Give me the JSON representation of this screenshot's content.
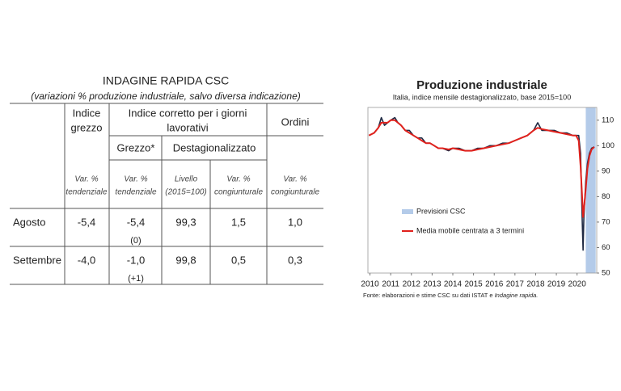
{
  "table": {
    "title": "INDAGINE RAPIDA CSC",
    "subtitle": "(variazioni % produzione industriale, salvo diversa indicazione)",
    "header_grezzo": [
      "Indice",
      "grezzo"
    ],
    "header_corretto": [
      "Indice corretto per i giorni",
      "lavorativi"
    ],
    "header_ordini": "Ordini",
    "sub_grezzo": "Grezzo*",
    "sub_destag": "Destagionalizzato",
    "units": [
      [
        "Var. %",
        "tendenziale"
      ],
      [
        "Var. %",
        "tendenziale"
      ],
      [
        "Livello",
        "(2015=100)"
      ],
      [
        "Var. %",
        "congiunturale"
      ],
      [
        "Var. %",
        "congiunturale"
      ]
    ],
    "rows": [
      {
        "label": "Agosto",
        "cells": [
          "-5,4",
          "-5,4",
          "99,3",
          "1,5",
          "1,0"
        ],
        "note": "(0)"
      },
      {
        "label": "Settembre",
        "cells": [
          "-4,0",
          "-1,0",
          "99,8",
          "0,5",
          "0,3"
        ],
        "note": "(+1)"
      }
    ]
  },
  "chart_data": {
    "type": "line",
    "title": "Produzione industriale",
    "subtitle": "Italia, indice mensile destagionalizzato, base 2015=100",
    "source": "Fonte: elaborazioni e stime CSC su dati ISTAT e",
    "source_italic": "Indagine rapida.",
    "xlim": [
      2009.9,
      2020.95
    ],
    "xticks": [
      2010,
      2011,
      2012,
      2013,
      2014,
      2015,
      2016,
      2017,
      2018,
      2019,
      2020
    ],
    "ylim": [
      50,
      115
    ],
    "yticks": [
      50,
      60,
      70,
      80,
      90,
      100,
      110
    ],
    "forecast": {
      "name": "Previsioni CSC",
      "color": "#b4cbe9",
      "x": [
        2020.42,
        2020.9
      ]
    },
    "series": [
      {
        "color": "#1f2a44",
        "x": [
          2009.95,
          2010.2,
          2010.4,
          2010.55,
          2010.7,
          2010.85,
          2011.0,
          2011.2,
          2011.35,
          2011.5,
          2011.7,
          2011.9,
          2012.1,
          2012.3,
          2012.5,
          2012.7,
          2012.9,
          2013.1,
          2013.3,
          2013.5,
          2013.8,
          2014.0,
          2014.3,
          2014.6,
          2014.9,
          2015.2,
          2015.5,
          2015.8,
          2016.1,
          2016.4,
          2016.7,
          2017.0,
          2017.3,
          2017.6,
          2017.9,
          2018.1,
          2018.3,
          2018.6,
          2018.9,
          2019.2,
          2019.5,
          2019.8,
          2019.95,
          2020.08,
          2020.17,
          2020.25,
          2020.29,
          2020.33,
          2020.42,
          2020.5,
          2020.6,
          2020.7,
          2020.83
        ],
        "values": [
          104,
          105,
          107,
          111,
          108,
          109,
          110,
          111,
          109,
          108,
          106,
          106,
          104,
          103,
          103,
          101,
          101,
          100,
          99,
          99,
          98,
          99,
          99,
          98,
          98,
          99,
          99,
          100,
          100,
          101,
          101,
          102,
          103,
          104,
          106,
          109,
          106,
          106,
          106,
          105,
          105,
          104,
          104,
          104,
          97,
          70,
          59,
          72,
          86,
          93,
          97,
          99,
          99.5
        ]
      },
      {
        "name": "Media mobile centrata a 3 termini",
        "color": "#e0211c",
        "x": [
          2009.95,
          2010.2,
          2010.4,
          2010.55,
          2010.7,
          2010.85,
          2011.0,
          2011.2,
          2011.35,
          2011.5,
          2011.7,
          2011.9,
          2012.1,
          2012.3,
          2012.5,
          2012.7,
          2012.9,
          2013.1,
          2013.3,
          2013.5,
          2013.8,
          2014.0,
          2014.3,
          2014.6,
          2014.9,
          2015.2,
          2015.5,
          2015.8,
          2016.1,
          2016.4,
          2016.7,
          2017.0,
          2017.3,
          2017.6,
          2017.9,
          2018.1,
          2018.3,
          2018.6,
          2018.9,
          2019.2,
          2019.5,
          2019.8,
          2019.95,
          2020.08,
          2020.17,
          2020.25,
          2020.29,
          2020.33,
          2020.42,
          2020.5,
          2020.6,
          2020.7,
          2020.83
        ],
        "values": [
          104,
          105,
          107,
          109,
          109,
          109,
          110,
          110,
          109,
          108,
          106,
          105,
          104,
          103,
          102,
          101,
          101,
          100,
          99,
          99,
          98.5,
          99,
          98.5,
          98,
          98,
          98.5,
          99,
          99.5,
          100,
          100.5,
          101,
          102,
          103,
          104,
          106,
          107,
          106.5,
          106,
          105.5,
          105,
          104.5,
          104,
          104,
          102,
          92,
          79,
          72,
          75,
          83,
          91,
          96,
          98.5,
          99.5
        ]
      }
    ]
  }
}
